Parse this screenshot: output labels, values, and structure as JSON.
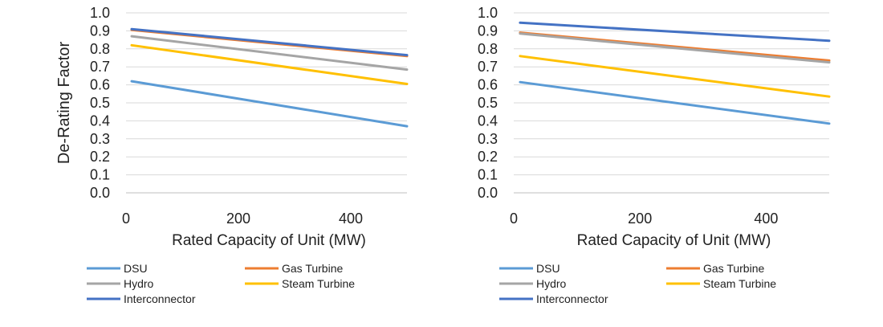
{
  "chart_data": [
    {
      "type": "line",
      "title": "",
      "xlabel": "Rated Capacity of Unit (MW)",
      "ylabel": "De-Rating Factor",
      "xlim": [
        0,
        500
      ],
      "ylim": [
        0.0,
        1.0
      ],
      "xticks": [
        0,
        200,
        400
      ],
      "yticks": [
        "0.0",
        "0.1",
        "0.2",
        "0.3",
        "0.4",
        "0.5",
        "0.6",
        "0.7",
        "0.8",
        "0.9",
        "1.0"
      ],
      "grid": "horizontal",
      "legend": "bottom",
      "series": [
        {
          "name": "DSU",
          "color": "#5b9bd5",
          "x": [
            10,
            500
          ],
          "y": [
            0.62,
            0.37
          ]
        },
        {
          "name": "Gas Turbine",
          "color": "#ed7d31",
          "x": [
            10,
            500
          ],
          "y": [
            0.905,
            0.76
          ]
        },
        {
          "name": "Hydro",
          "color": "#a5a5a5",
          "x": [
            10,
            500
          ],
          "y": [
            0.87,
            0.685
          ]
        },
        {
          "name": "Steam Turbine",
          "color": "#ffc000",
          "x": [
            10,
            500
          ],
          "y": [
            0.82,
            0.605
          ]
        },
        {
          "name": "Interconnector",
          "color": "#4472c4",
          "x": [
            10,
            500
          ],
          "y": [
            0.91,
            0.765
          ]
        }
      ]
    },
    {
      "type": "line",
      "title": "",
      "xlabel": "Rated Capacity of Unit (MW)",
      "ylabel": "",
      "xlim": [
        0,
        500
      ],
      "ylim": [
        0.0,
        1.0
      ],
      "xticks": [
        0,
        200,
        400
      ],
      "yticks": [
        "0.0",
        "0.1",
        "0.2",
        "0.3",
        "0.4",
        "0.5",
        "0.6",
        "0.7",
        "0.8",
        "0.9",
        "1.0"
      ],
      "grid": "horizontal",
      "legend": "bottom",
      "series": [
        {
          "name": "DSU",
          "color": "#5b9bd5",
          "x": [
            10,
            500
          ],
          "y": [
            0.615,
            0.385
          ]
        },
        {
          "name": "Gas Turbine",
          "color": "#ed7d31",
          "x": [
            10,
            500
          ],
          "y": [
            0.89,
            0.735
          ]
        },
        {
          "name": "Hydro",
          "color": "#a5a5a5",
          "x": [
            10,
            500
          ],
          "y": [
            0.885,
            0.725
          ]
        },
        {
          "name": "Steam Turbine",
          "color": "#ffc000",
          "x": [
            10,
            500
          ],
          "y": [
            0.76,
            0.535
          ]
        },
        {
          "name": "Interconnector",
          "color": "#4472c4",
          "x": [
            10,
            500
          ],
          "y": [
            0.945,
            0.845
          ]
        }
      ]
    }
  ]
}
